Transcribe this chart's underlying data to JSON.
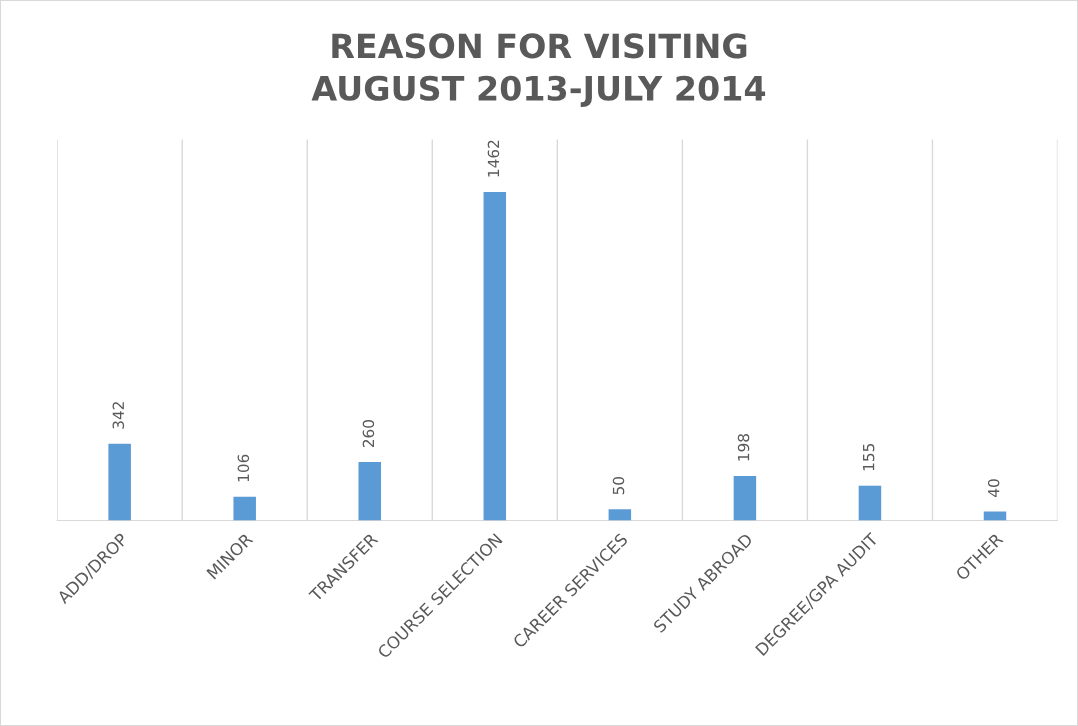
{
  "chart_data": {
    "type": "bar",
    "title": "REASON FOR VISITING\nAUGUST 2013-JULY 2014",
    "categories": [
      "ADD/DROP",
      "MINOR",
      "TRANSFER",
      "COURSE SELECTION",
      "CAREER SERVICES",
      "STUDY ABROAD",
      "DEGREE/GPA AUDIT",
      "OTHER"
    ],
    "values": [
      342,
      106,
      260,
      1462,
      50,
      198,
      155,
      40
    ],
    "color": "#5b9bd5",
    "data_labels": true,
    "grid": "x",
    "legend": false
  }
}
